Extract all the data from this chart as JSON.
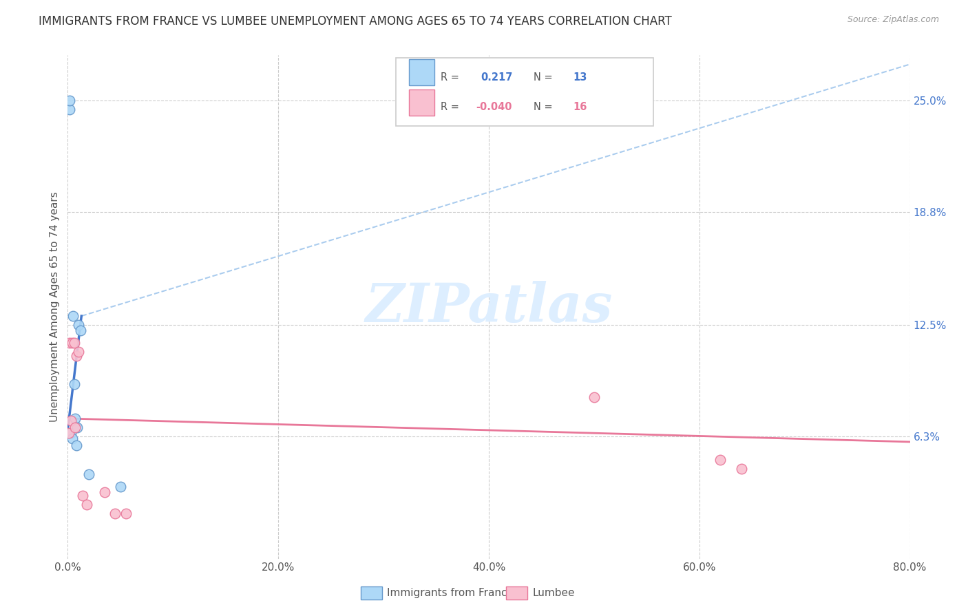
{
  "title": "IMMIGRANTS FROM FRANCE VS LUMBEE UNEMPLOYMENT AMONG AGES 65 TO 74 YEARS CORRELATION CHART",
  "source": "Source: ZipAtlas.com",
  "ylabel": "Unemployment Among Ages 65 to 74 years",
  "xlim": [
    0.0,
    0.8
  ],
  "ylim": [
    -0.005,
    0.275
  ],
  "xtick_labels": [
    "0.0%",
    "20.0%",
    "40.0%",
    "60.0%",
    "80.0%"
  ],
  "xtick_vals": [
    0.0,
    0.2,
    0.4,
    0.6,
    0.8
  ],
  "ytick_labels_right": [
    "25.0%",
    "18.8%",
    "12.5%",
    "6.3%"
  ],
  "ytick_vals_right": [
    0.25,
    0.188,
    0.125,
    0.063
  ],
  "grid_color": "#cccccc",
  "watermark_text": "ZIPatlas",
  "france_color": "#add8f7",
  "france_edge_color": "#6699cc",
  "lumbee_color": "#f9c0d0",
  "lumbee_edge_color": "#e87799",
  "france_R": "0.217",
  "france_N": "13",
  "lumbee_R": "-0.040",
  "lumbee_N": "16",
  "france_points_x": [
    0.002,
    0.002,
    0.003,
    0.004,
    0.005,
    0.006,
    0.007,
    0.008,
    0.009,
    0.01,
    0.012,
    0.02,
    0.05
  ],
  "france_points_y": [
    0.245,
    0.25,
    0.065,
    0.062,
    0.13,
    0.092,
    0.073,
    0.058,
    0.068,
    0.125,
    0.122,
    0.042,
    0.035
  ],
  "lumbee_points_x": [
    0.001,
    0.002,
    0.003,
    0.004,
    0.006,
    0.007,
    0.008,
    0.01,
    0.014,
    0.018,
    0.035,
    0.045,
    0.055,
    0.5,
    0.62,
    0.64
  ],
  "lumbee_points_y": [
    0.065,
    0.115,
    0.072,
    0.115,
    0.115,
    0.068,
    0.108,
    0.11,
    0.03,
    0.025,
    0.032,
    0.02,
    0.02,
    0.085,
    0.05,
    0.045
  ],
  "france_solid_line_x": [
    0.0,
    0.013
  ],
  "france_solid_line_y": [
    0.067,
    0.13
  ],
  "france_dashed_line_x": [
    0.013,
    0.8
  ],
  "france_dashed_line_y": [
    0.13,
    0.27
  ],
  "lumbee_line_x": [
    0.0,
    0.8
  ],
  "lumbee_line_y": [
    0.073,
    0.06
  ],
  "marker_size": 110
}
